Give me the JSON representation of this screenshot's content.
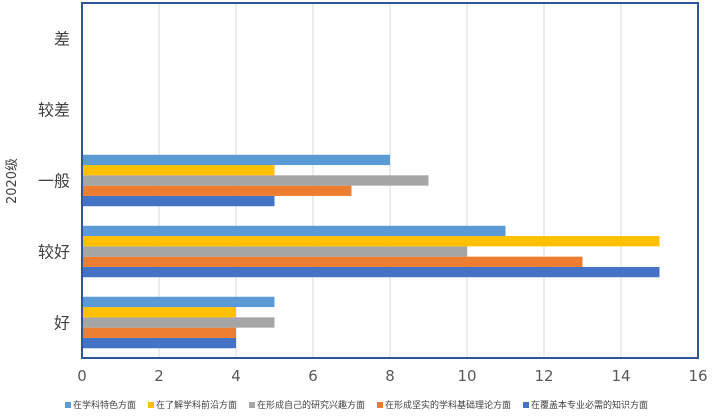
{
  "chart_data": {
    "type": "bar",
    "orientation": "horizontal",
    "title": "",
    "ylabel": "2020级",
    "xlabel": "",
    "categories": [
      "好",
      "较好",
      "一般",
      "较差",
      "差"
    ],
    "xlim": [
      0,
      16
    ],
    "xticks": [
      0,
      2,
      4,
      6,
      8,
      10,
      12,
      14,
      16
    ],
    "grid": true,
    "legend_position": "bottom",
    "series": [
      {
        "name": "在覆盖本专业必需的知识方面",
        "color": "#4472C4",
        "values": [
          4,
          15,
          5,
          0,
          0
        ]
      },
      {
        "name": "在形成坚实的学科基础理论方面",
        "color": "#ED7D31",
        "values": [
          4,
          13,
          7,
          0,
          0
        ]
      },
      {
        "name": "在形成自己的研究兴趣方面",
        "color": "#A5A5A5",
        "values": [
          5,
          10,
          9,
          0,
          0
        ]
      },
      {
        "name": "在了解学科前沿方面",
        "color": "#FFC000",
        "values": [
          4,
          15,
          5,
          0,
          0
        ]
      },
      {
        "name": "在学科特色方面",
        "color": "#5B9BD5",
        "values": [
          5,
          11,
          8,
          0,
          0
        ]
      }
    ],
    "legend_order": [
      4,
      3,
      2,
      1,
      0
    ]
  }
}
